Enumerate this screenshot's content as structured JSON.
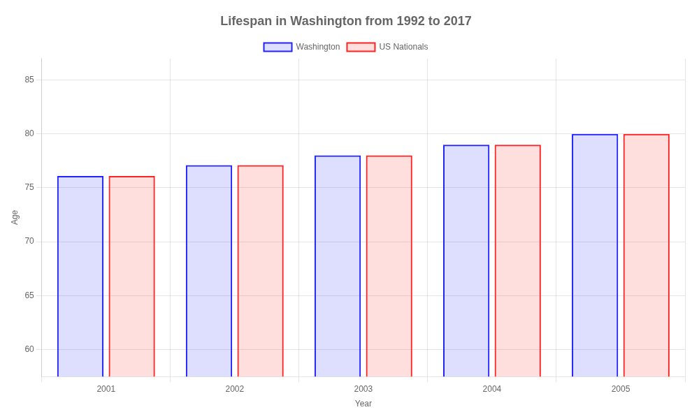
{
  "chart_data": {
    "type": "bar",
    "title": "Lifespan in Washington from 1992 to 2017",
    "x_label": "Year",
    "y_label": "Age",
    "categories": [
      "2001",
      "2002",
      "2003",
      "2004",
      "2005"
    ],
    "series": [
      {
        "name": "Washington",
        "color": "#2222ff",
        "values": [
          76.1,
          77.1,
          78.0,
          79.0,
          80.0
        ]
      },
      {
        "name": "US Nationals",
        "color": "#ff2222",
        "values": [
          76.1,
          77.1,
          78.0,
          79.0,
          80.0
        ]
      }
    ],
    "ylim": [
      57.5,
      87
    ],
    "yticks": [
      60,
      65,
      70,
      75,
      80,
      85
    ],
    "grid": true,
    "legend": "top"
  }
}
